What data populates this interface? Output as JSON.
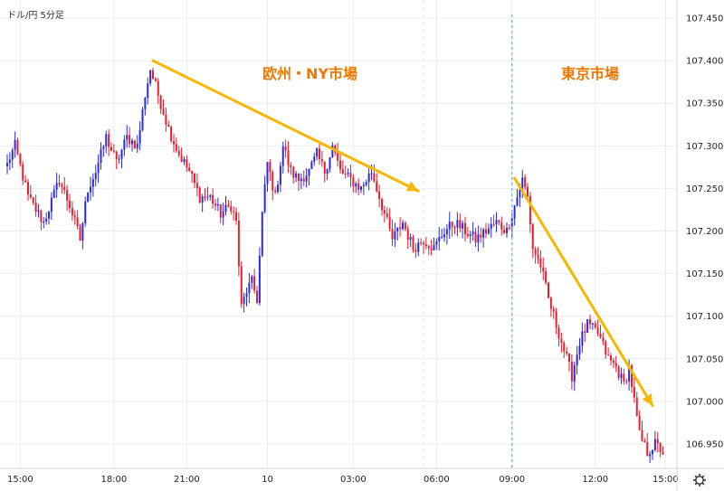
{
  "chart_data": {
    "type": "candlestick",
    "title": "ドル/円  5分足",
    "ylim": [
      106.915,
      107.475
    ],
    "y_ticks": [
      "107.450",
      "107.400",
      "107.350",
      "107.300",
      "107.250",
      "107.200",
      "107.150",
      "107.100",
      "107.050",
      "107.000",
      "106.950"
    ],
    "x_ticks": [
      "15:00",
      "18:00",
      "21:00",
      "10",
      "03:00",
      "06:00",
      "09:00",
      "12:00",
      "15:00"
    ],
    "grid": true,
    "colors": {
      "up": "#2a2ae6",
      "down": "#e61e2d",
      "arrow": "#f5b700",
      "annotation": "#f07800",
      "session_line": "#40c0e0",
      "grid": "#e8edf2"
    },
    "anchors": [
      [
        0,
        107.28
      ],
      [
        3,
        107.3
      ],
      [
        8,
        107.24
      ],
      [
        14,
        107.21
      ],
      [
        20,
        107.26
      ],
      [
        24,
        107.23
      ],
      [
        28,
        107.19
      ],
      [
        31,
        107.25
      ],
      [
        34,
        107.27
      ],
      [
        38,
        107.31
      ],
      [
        42,
        107.28
      ],
      [
        46,
        107.31
      ],
      [
        50,
        107.3
      ],
      [
        53,
        107.36
      ],
      [
        55,
        107.39
      ],
      [
        58,
        107.36
      ],
      [
        62,
        107.32
      ],
      [
        66,
        107.29
      ],
      [
        70,
        107.27
      ],
      [
        74,
        107.24
      ],
      [
        78,
        107.24
      ],
      [
        82,
        107.22
      ],
      [
        86,
        107.23
      ],
      [
        88,
        107.21
      ],
      [
        90,
        107.11
      ],
      [
        92,
        107.13
      ],
      [
        94,
        107.14
      ],
      [
        96,
        107.12
      ],
      [
        98,
        107.22
      ],
      [
        100,
        107.28
      ],
      [
        103,
        107.24
      ],
      [
        106,
        107.3
      ],
      [
        109,
        107.27
      ],
      [
        112,
        107.26
      ],
      [
        116,
        107.27
      ],
      [
        119,
        107.29
      ],
      [
        122,
        107.27
      ],
      [
        125,
        107.3
      ],
      [
        128,
        107.27
      ],
      [
        132,
        107.26
      ],
      [
        136,
        107.25
      ],
      [
        140,
        107.27
      ],
      [
        144,
        107.23
      ],
      [
        148,
        107.19
      ],
      [
        152,
        107.21
      ],
      [
        156,
        107.18
      ],
      [
        160,
        107.19
      ],
      [
        164,
        107.18
      ],
      [
        168,
        107.2
      ],
      [
        172,
        107.21
      ],
      [
        176,
        107.2
      ],
      [
        180,
        107.19
      ],
      [
        184,
        107.2
      ],
      [
        188,
        107.21
      ],
      [
        192,
        107.2
      ],
      [
        196,
        107.24
      ],
      [
        198,
        107.26
      ],
      [
        200,
        107.24
      ],
      [
        202,
        107.18
      ],
      [
        205,
        107.16
      ],
      [
        208,
        107.12
      ],
      [
        211,
        107.09
      ],
      [
        214,
        107.06
      ],
      [
        217,
        107.03
      ],
      [
        220,
        107.07
      ],
      [
        223,
        107.09
      ],
      [
        227,
        107.08
      ],
      [
        231,
        107.05
      ],
      [
        234,
        107.04
      ],
      [
        237,
        107.02
      ],
      [
        239,
        107.04
      ],
      [
        241,
        107.0
      ],
      [
        243,
        106.96
      ],
      [
        246,
        106.94
      ],
      [
        249,
        106.95
      ],
      [
        252,
        106.94
      ]
    ],
    "annotations": [
      {
        "text": "欧州・NY市場"
      },
      {
        "text": "東京市場"
      }
    ]
  }
}
